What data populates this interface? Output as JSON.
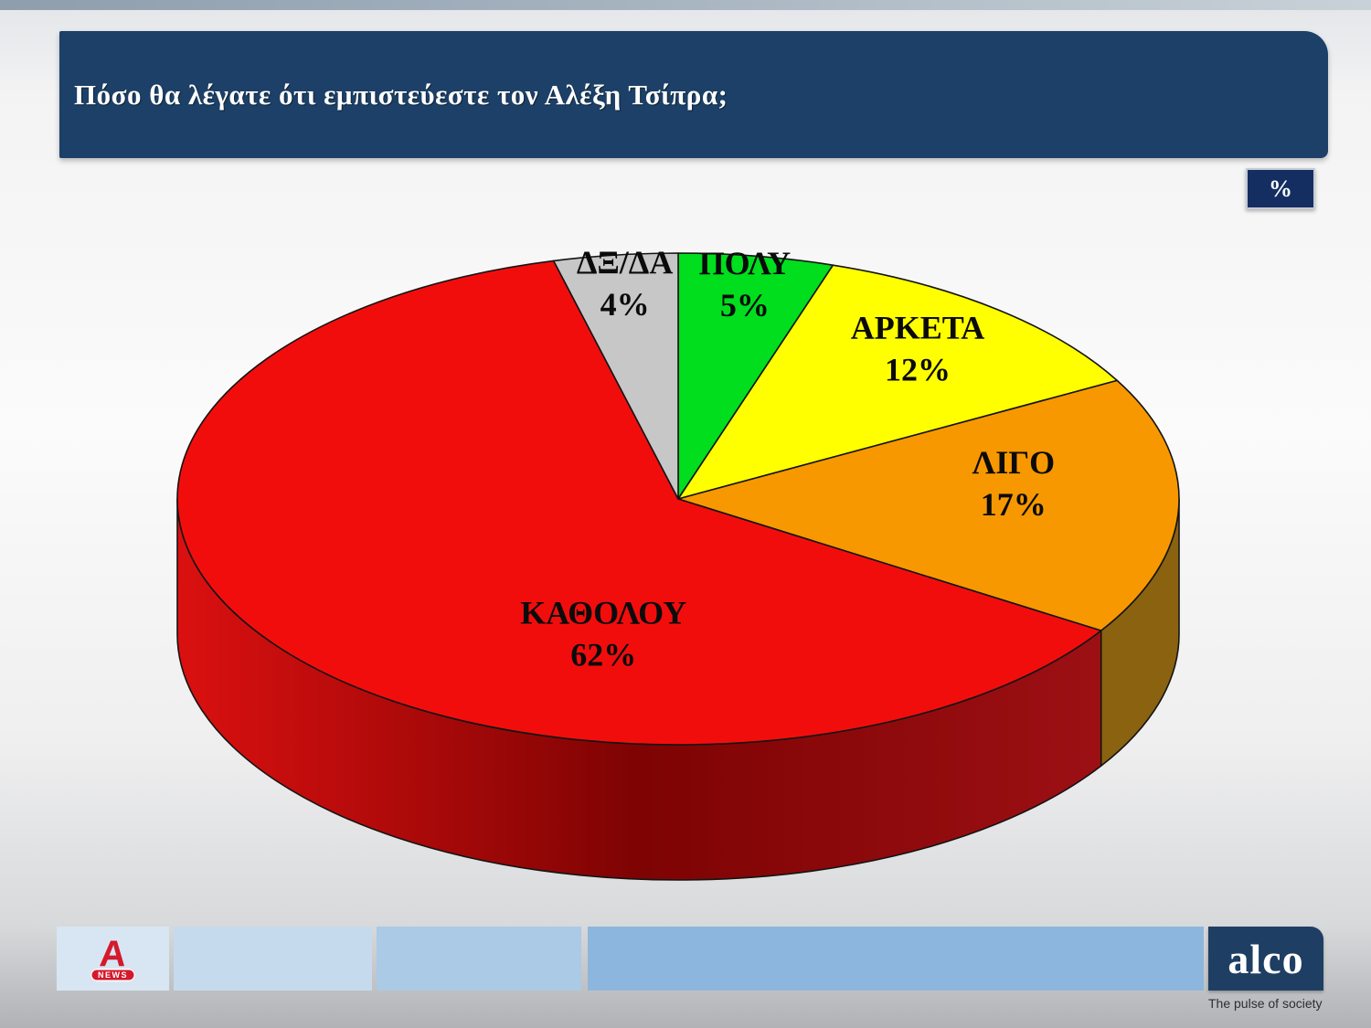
{
  "slide": {
    "title": "Πόσο θα λέγατε ότι εμπιστεύεστε τον Αλέξη Τσίπρα;",
    "unit_badge": "%"
  },
  "chart_data": {
    "type": "pie",
    "style": "3d-exploded-none",
    "title": "Πόσο θα λέγατε ότι εμπιστεύεστε τον Αλέξη Τσίπρα;",
    "unit": "%",
    "legend_position": "none",
    "labels_on_slices": true,
    "start_at_12_oclock": true,
    "clockwise": true,
    "slices": [
      {
        "label": "ΠΟΛΥ",
        "value": 5,
        "color": "#00DE1E",
        "side_color": "#0B7F12",
        "label_c": 0.025,
        "label_r": 0.85
      },
      {
        "label": "ΑΡΚΕΤΑ",
        "value": 12,
        "color": "#FFFF00",
        "side_color": "#8F8F00",
        "label_c": 0.11,
        "label_r": 0.75
      },
      {
        "label": "ΛΙΓΟ",
        "value": 17,
        "color": "#F89800",
        "side_color": "#8A6210",
        "label_c": 0.243,
        "label_r": 0.67
      },
      {
        "label": "ΚΑΘΟΛΟΥ",
        "value": 62,
        "color": "#F20D0D",
        "side_color": [
          "#DB1010",
          "#7E0303",
          "#9C1014"
        ],
        "label_c": 0.54,
        "label_r": 0.6
      },
      {
        "label": "ΔΞ/ΔΑ",
        "value": 4,
        "color": "#C7C7C7",
        "side_color": "#808080",
        "label_c": 0.98,
        "label_r": 0.85
      }
    ]
  },
  "footer": {
    "segments": [
      "#D8E6F3",
      "#C6DAED",
      "#AACAE6",
      "#8CB6DD"
    ],
    "alpha_news": {
      "letter": "A",
      "badge": "NEWS",
      "red": "#D5192C"
    },
    "alco": {
      "name": "alco",
      "tagline": "The pulse of society",
      "bg": "#1E3F63"
    }
  }
}
